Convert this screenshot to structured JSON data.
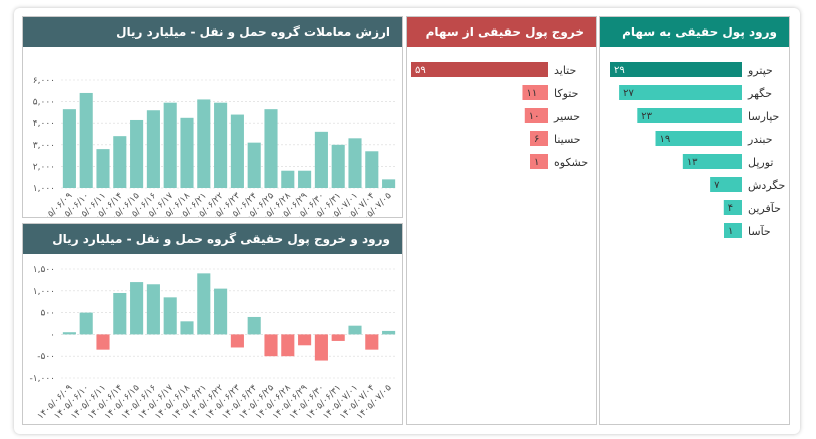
{
  "panels": {
    "inflow_title": "ورود پول حقیقی به سهام",
    "outflow_title": "خروج پول حقیقی از سهام",
    "value_title": "ارزش معاملات گروه حمل و نقل - میلیارد ریال",
    "net_title": "ورود و خروج پول حقیقی گروه حمل و نقل - میلیارد ریال"
  },
  "inflow": {
    "color_dark": "#0e8a7b",
    "color": "#3fc9b8",
    "items": [
      {
        "name": "حپترو",
        "value": 29,
        "label": "۲۹"
      },
      {
        "name": "حگهر",
        "value": 27,
        "label": "۲۷"
      },
      {
        "name": "حپارسا",
        "value": 23,
        "label": "۲۳"
      },
      {
        "name": "حبندر",
        "value": 19,
        "label": "۱۹"
      },
      {
        "name": "تورپل",
        "value": 13,
        "label": "۱۳"
      },
      {
        "name": "حگردش",
        "value": 7,
        "label": "۷"
      },
      {
        "name": "حآفرین",
        "value": 4,
        "label": "۴"
      },
      {
        "name": "حآسا",
        "value": 1,
        "label": "۱"
      }
    ]
  },
  "outflow": {
    "color_dark": "#bf4a4a",
    "color": "#f47c7c",
    "items": [
      {
        "name": "حتاید",
        "value": 59,
        "label": "۵۹"
      },
      {
        "name": "حتوکا",
        "value": 11,
        "label": "۱۱"
      },
      {
        "name": "حسیر",
        "value": 10,
        "label": "۱۰"
      },
      {
        "name": "حسینا",
        "value": 6,
        "label": "۶"
      },
      {
        "name": "حشکوه",
        "value": 1,
        "label": "۱"
      }
    ]
  },
  "chart_data": [
    {
      "type": "bar",
      "title": "ارزش معاملات گروه حمل و نقل - میلیارد ریال",
      "color": "#7ec9bf",
      "categories": [
        "۱۴۰۵/۰۶/۰۹",
        "۱۴۰۵/۰۶/۱۰",
        "۱۴۰۵/۰۶/۱۱",
        "۱۴۰۵/۰۶/۱۴",
        "۱۴۰۵/۰۶/۱۵",
        "۱۴۰۵/۰۶/۱۶",
        "۱۴۰۵/۰۶/۱۷",
        "۱۴۰۵/۰۶/۱۸",
        "۱۴۰۵/۰۶/۲۱",
        "۱۴۰۵/۰۶/۲۲",
        "۱۴۰۵/۰۶/۲۳",
        "۱۴۰۵/۰۶/۲۴",
        "۱۴۰۵/۰۶/۲۵",
        "۱۴۰۵/۰۶/۲۸",
        "۱۴۰۵/۰۶/۲۹",
        "۱۴۰۵/۰۶/۳۰",
        "۱۴۰۵/۰۶/۳۱",
        "۱۴۰۵/۰۷/۰۱",
        "۱۴۰۵/۰۷/۰۴",
        "۱۴۰۵/۰۷/۰۵"
      ],
      "values": [
        4650,
        5400,
        2800,
        3400,
        4150,
        4600,
        4950,
        4250,
        5100,
        4950,
        4400,
        3100,
        4650,
        1800,
        1800,
        3600,
        3000,
        3300,
        2700,
        1400
      ],
      "ylim": [
        1000,
        6000
      ],
      "yticks": [
        1000,
        2000,
        3000,
        4000,
        5000,
        6000
      ],
      "ytick_labels": [
        "۱,۰۰۰",
        "۲,۰۰۰",
        "۳,۰۰۰",
        "۴,۰۰۰",
        "۵,۰۰۰",
        "۶,۰۰۰"
      ]
    },
    {
      "type": "bar",
      "title": "ورود و خروج پول حقیقی گروه حمل و نقل - میلیارد ریال",
      "color_pos": "#7ec9bf",
      "color_neg": "#f47c7c",
      "categories": [
        "۱۴۰۵/۰۶/۰۹",
        "۱۴۰۵/۰۶/۱۰",
        "۱۴۰۵/۰۶/۱۱",
        "۱۴۰۵/۰۶/۱۴",
        "۱۴۰۵/۰۶/۱۵",
        "۱۴۰۵/۰۶/۱۶",
        "۱۴۰۵/۰۶/۱۷",
        "۱۴۰۵/۰۶/۱۸",
        "۱۴۰۵/۰۶/۲۱",
        "۱۴۰۵/۰۶/۲۲",
        "۱۴۰۵/۰۶/۲۳",
        "۱۴۰۵/۰۶/۲۴",
        "۱۴۰۵/۰۶/۲۵",
        "۱۴۰۵/۰۶/۲۸",
        "۱۴۰۵/۰۶/۲۹",
        "۱۴۰۵/۰۶/۳۰",
        "۱۴۰۵/۰۶/۳۱",
        "۱۴۰۵/۰۷/۰۱",
        "۱۴۰۵/۰۷/۰۴",
        "۱۴۰۵/۰۷/۰۵"
      ],
      "values": [
        50,
        500,
        -350,
        950,
        1200,
        1150,
        850,
        300,
        1400,
        1050,
        -300,
        400,
        -500,
        -500,
        -250,
        -600,
        -150,
        200,
        -350,
        80
      ],
      "ylim": [
        -1000,
        1500
      ],
      "yticks": [
        -1000,
        -500,
        0,
        500,
        1000,
        1500
      ],
      "ytick_labels": [
        "-۱,۰۰۰",
        "-۵۰۰",
        "۰",
        "۵۰۰",
        "۱,۰۰۰",
        "۱,۵۰۰"
      ]
    }
  ]
}
